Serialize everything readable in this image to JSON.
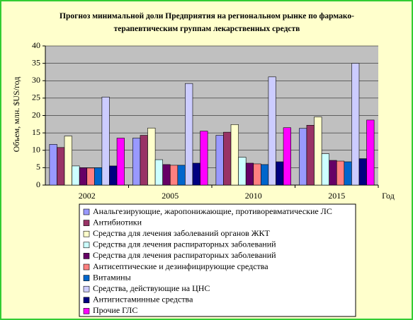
{
  "chart_data": {
    "type": "bar",
    "title": "Прогноз минимальной доли Предприятия на региональном рынке по фармако-терапевтическим группам лекарственных средств",
    "y_label": "Объем, млн. $US/год",
    "x_label": "Год",
    "categories": [
      "2002",
      "2005",
      "2010",
      "2015"
    ],
    "ylim": [
      0,
      40
    ],
    "yticks": [
      0,
      5,
      10,
      15,
      20,
      25,
      30,
      35,
      40
    ],
    "grid": true,
    "series": [
      {
        "name": "Анальгезирующие, жаропонижающие, противоревматические ЛС",
        "color": "#9999ff",
        "values": [
          11.7,
          13.5,
          14.3,
          16.3
        ]
      },
      {
        "name": "Антибиотики",
        "color": "#993366",
        "values": [
          10.8,
          14.3,
          15.2,
          17.2
        ]
      },
      {
        "name": "Средства для лечения заболеваний органов ЖКТ",
        "color": "#ffffcc",
        "values": [
          14.1,
          16.4,
          17.4,
          19.6
        ]
      },
      {
        "name": "Средства для лечения распираторных заболеваний",
        "color": "#ccffff",
        "values": [
          5.5,
          7.3,
          8.0,
          9.0
        ]
      },
      {
        "name": "Средства для лечения распираторных заболеваний",
        "color": "#660066",
        "values": [
          5.0,
          5.9,
          6.3,
          7.1
        ]
      },
      {
        "name": "Антисептические и дезинфицирующие средства",
        "color": "#ff8080",
        "values": [
          4.9,
          5.7,
          6.1,
          6.9
        ]
      },
      {
        "name": "Витамины",
        "color": "#0066cc",
        "values": [
          5.0,
          5.7,
          5.9,
          6.7
        ]
      },
      {
        "name": "Средства, действующие на ЦНС",
        "color": "#ccccff",
        "values": [
          25.3,
          29.2,
          31.1,
          35.0
        ]
      },
      {
        "name": "Антигистаминные средства",
        "color": "#000080",
        "values": [
          5.5,
          6.3,
          6.7,
          7.6
        ]
      },
      {
        "name": "Прочие ГЛС",
        "color": "#ff00ff",
        "values": [
          13.5,
          15.5,
          16.5,
          18.7
        ]
      }
    ]
  }
}
